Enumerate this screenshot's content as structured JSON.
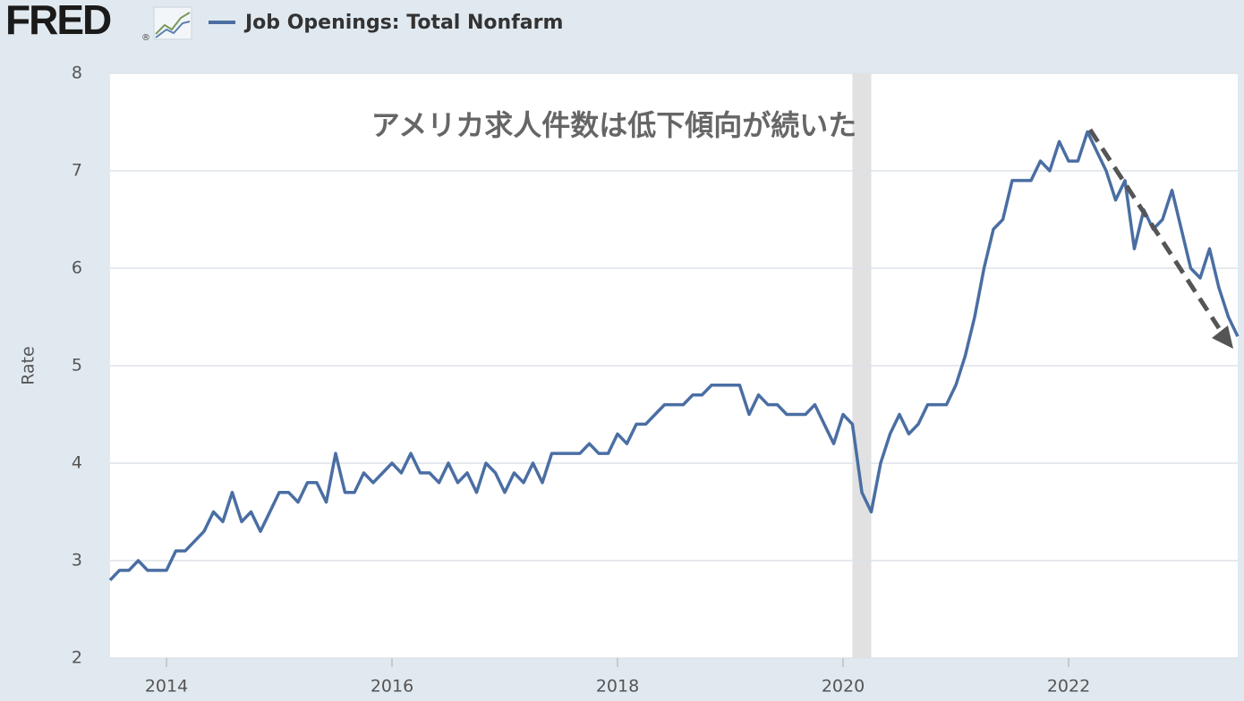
{
  "chart_data": {
    "type": "line",
    "logo": "FRED",
    "logo_mark": "®",
    "ylabel": "Rate",
    "annotation": "アメリカ求人件数は低下傾向が続いた",
    "xlim": [
      2013.5,
      2023.5
    ],
    "xticks": [
      2014,
      2016,
      2018,
      2020,
      2022
    ],
    "ylim": [
      2,
      8
    ],
    "yticks": [
      2,
      3,
      4,
      5,
      6,
      7,
      8
    ],
    "grid": true,
    "shading": [
      {
        "start": 2020.083,
        "end": 2020.25
      }
    ],
    "x": [
      2013.5,
      2013.583,
      2013.667,
      2013.75,
      2013.833,
      2013.917,
      2014,
      2014.083,
      2014.167,
      2014.25,
      2014.333,
      2014.417,
      2014.5,
      2014.583,
      2014.667,
      2014.75,
      2014.833,
      2014.917,
      2015,
      2015.083,
      2015.167,
      2015.25,
      2015.333,
      2015.417,
      2015.5,
      2015.583,
      2015.667,
      2015.75,
      2015.833,
      2015.917,
      2016,
      2016.083,
      2016.167,
      2016.25,
      2016.333,
      2016.417,
      2016.5,
      2016.583,
      2016.667,
      2016.75,
      2016.833,
      2016.917,
      2017,
      2017.083,
      2017.167,
      2017.25,
      2017.333,
      2017.417,
      2017.5,
      2017.583,
      2017.667,
      2017.75,
      2017.833,
      2017.917,
      2018,
      2018.083,
      2018.167,
      2018.25,
      2018.333,
      2018.417,
      2018.5,
      2018.583,
      2018.667,
      2018.75,
      2018.833,
      2018.917,
      2019,
      2019.083,
      2019.167,
      2019.25,
      2019.333,
      2019.417,
      2019.5,
      2019.583,
      2019.667,
      2019.75,
      2019.833,
      2019.917,
      2020,
      2020.083,
      2020.167,
      2020.25,
      2020.333,
      2020.417,
      2020.5,
      2020.583,
      2020.667,
      2020.75,
      2020.833,
      2020.917,
      2021,
      2021.083,
      2021.167,
      2021.25,
      2021.333,
      2021.417,
      2021.5,
      2021.583,
      2021.667,
      2021.75,
      2021.833,
      2021.917,
      2022,
      2022.083,
      2022.167,
      2022.25,
      2022.333,
      2022.417,
      2022.5,
      2022.583,
      2022.667,
      2022.75,
      2022.833,
      2022.917,
      2023,
      2023.083,
      2023.167,
      2023.25,
      2023.333,
      2023.417,
      2023.5
    ],
    "series": [
      {
        "name": "Job Openings: Total Nonfarm",
        "color": "#4a6ea3",
        "values": [
          2.8,
          2.9,
          2.9,
          3.0,
          2.9,
          2.9,
          2.9,
          3.1,
          3.1,
          3.2,
          3.3,
          3.5,
          3.4,
          3.7,
          3.4,
          3.5,
          3.3,
          3.5,
          3.7,
          3.7,
          3.6,
          3.8,
          3.8,
          3.6,
          4.1,
          3.7,
          3.7,
          3.9,
          3.8,
          3.9,
          4.0,
          3.9,
          4.1,
          3.9,
          3.9,
          3.8,
          4.0,
          3.8,
          3.9,
          3.7,
          4.0,
          3.9,
          3.7,
          3.9,
          3.8,
          4.0,
          3.8,
          4.1,
          4.1,
          4.1,
          4.1,
          4.2,
          4.1,
          4.1,
          4.3,
          4.2,
          4.4,
          4.4,
          4.5,
          4.6,
          4.6,
          4.6,
          4.7,
          4.7,
          4.8,
          4.8,
          4.8,
          4.8,
          4.5,
          4.7,
          4.6,
          4.6,
          4.5,
          4.5,
          4.5,
          4.6,
          4.4,
          4.2,
          4.5,
          4.4,
          3.7,
          3.5,
          4.0,
          4.3,
          4.5,
          4.3,
          4.4,
          4.6,
          4.6,
          4.6,
          4.8,
          5.1,
          5.5,
          6.0,
          6.4,
          6.5,
          6.9,
          6.9,
          6.9,
          7.1,
          7.0,
          7.3,
          7.1,
          7.1,
          7.4,
          7.2,
          7.0,
          6.7,
          6.9,
          6.2,
          6.6,
          6.4,
          6.5,
          6.8,
          6.4,
          6.0,
          5.9,
          6.2,
          5.8,
          5.5,
          5.3
        ]
      }
    ]
  }
}
